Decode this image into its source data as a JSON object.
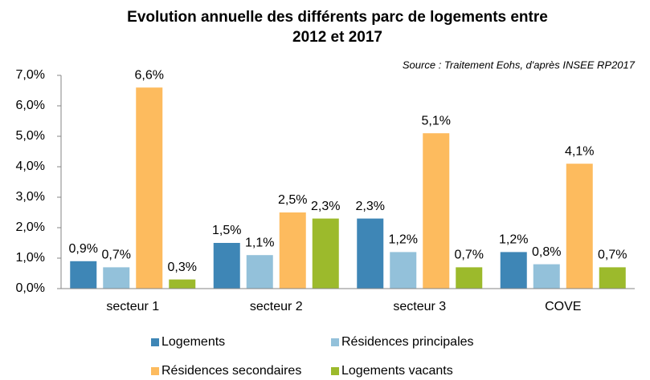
{
  "chart_data": {
    "type": "bar",
    "title_lines": [
      "Evolution annuelle des différents  parc de logements entre",
      "2012 et 2017"
    ],
    "source": "Source : Traitement Eohs, d'après INSEE RP2017",
    "categories": [
      "secteur 1",
      "secteur 2",
      "secteur 3",
      "COVE"
    ],
    "series": [
      {
        "name": "Logements",
        "color": "#3e86b6",
        "values": [
          0.9,
          1.5,
          2.3,
          1.2
        ],
        "value_labels": [
          "0,9%",
          "1,5%",
          "2,3%",
          "1,2%"
        ]
      },
      {
        "name": "Résidences principales",
        "color": "#93c1da",
        "values": [
          0.7,
          1.1,
          1.2,
          0.8
        ],
        "value_labels": [
          "0,7%",
          "1,1%",
          "1,2%",
          "0,8%"
        ]
      },
      {
        "name": "Résidences secondaires",
        "color": "#fdbb5e",
        "values": [
          6.6,
          2.5,
          5.1,
          4.1
        ],
        "value_labels": [
          "6,6%",
          "2,5%",
          "5,1%",
          "4,1%"
        ]
      },
      {
        "name": "Logements vacants",
        "color": "#9cba2c",
        "values": [
          0.3,
          2.3,
          0.7,
          0.7
        ],
        "value_labels": [
          "0,3%",
          "2,3%",
          "0,7%",
          "0,7%"
        ]
      }
    ],
    "ylim": [
      0,
      7
    ],
    "yticks": [
      {
        "value": 0,
        "label": "0,0%"
      },
      {
        "value": 1,
        "label": "1,0%"
      },
      {
        "value": 2,
        "label": "2,0%"
      },
      {
        "value": 3,
        "label": "3,0%"
      },
      {
        "value": 4,
        "label": "4,0%"
      },
      {
        "value": 5,
        "label": "5,0%"
      },
      {
        "value": 6,
        "label": "6,0%"
      },
      {
        "value": 7,
        "label": "7,0%"
      }
    ],
    "grid": false
  }
}
